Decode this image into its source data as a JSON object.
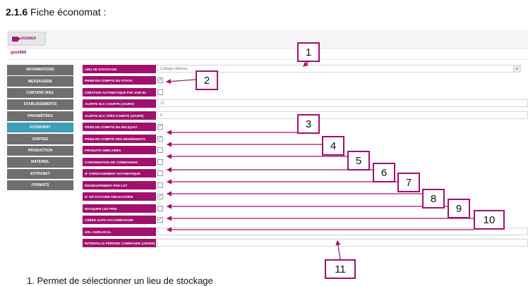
{
  "heading": {
    "number": "2.1.6",
    "title": "Fiche économat :"
  },
  "toolbar": {
    "close_label": "FERMER"
  },
  "record_code": "geet888",
  "menu": [
    {
      "label": "INFORMATIONS",
      "active": false
    },
    {
      "label": "MESSAGERIE",
      "active": false
    },
    {
      "label": "CONTENU MAIL",
      "active": false
    },
    {
      "label": "ETABLISSEMENTS",
      "active": false
    },
    {
      "label": "PARAMÈTRES",
      "active": false
    },
    {
      "label": "ECONOMAT",
      "active": true
    },
    {
      "label": "SORTIES",
      "active": false
    },
    {
      "label": "PRODUCTION",
      "active": false
    },
    {
      "label": "MATÉRIEL",
      "active": false
    },
    {
      "label": "EXTRANET",
      "active": false
    },
    {
      "label": "FORMATS",
      "active": false
    }
  ],
  "fields": [
    {
      "label": "LIEU DE STOCKAGE",
      "type": "select",
      "value": "Collège Hélicéa"
    },
    {
      "label": "PRISE EN COMPTE DU STOCK",
      "type": "checkbox",
      "checked": true
    },
    {
      "label": "CRÉATION AUTOMATIQUE FNC SUR BL",
      "type": "checkbox",
      "checked": false
    },
    {
      "label": "ALERTE DLC COURTE (JOURS)",
      "type": "text",
      "value": "11"
    },
    {
      "label": "ALERTE DLC TRÈS COURTE (JOURS)",
      "type": "text",
      "value": "6"
    },
    {
      "label": "PRISE EN COMPTE DU RELIQUAT",
      "type": "checkbox",
      "checked": true
    },
    {
      "label": "PRISE EN COMPTE DES INGRÉDIENTS",
      "type": "checkbox",
      "checked": true
    },
    {
      "label": "PRODUITS SIMILAIRES",
      "type": "checkbox",
      "checked": false
    },
    {
      "label": "CONFIRMATION DE COMMANDES",
      "type": "checkbox",
      "checked": false
    },
    {
      "label": "N° D'ENGAGEMENT AUTOMATIQUE",
      "type": "checkbox",
      "checked": false
    },
    {
      "label": "REGROUPEMENT PAR LOT",
      "type": "checkbox",
      "checked": false
    },
    {
      "label": "N° DE FACTURE OBLIGATOIRE",
      "type": "checkbox",
      "checked": true
    },
    {
      "label": "MASQUER LES PRIX",
      "type": "checkbox",
      "checked": false
    },
    {
      "label": "CRÉER AUTO FACTURE/AVOIR",
      "type": "checkbox",
      "checked": true
    },
    {
      "label": "URL AGRILOCAL",
      "type": "text",
      "value": ""
    },
    {
      "label": "INTERVALLE PÉRIODE COMMANDE (JOURS)",
      "type": "text",
      "value": ""
    }
  ],
  "callouts": [
    "1",
    "2",
    "3",
    "4",
    "5",
    "6",
    "7",
    "8",
    "9",
    "10",
    "11"
  ],
  "footer_text": "1.     Permet de sélectionner un lieu de stockage",
  "colors": {
    "label_bg": "#a0106c",
    "menu_bg": "#6f6f6f",
    "menu_active": "#3b9fb5",
    "callout_border": "#a0106c"
  }
}
